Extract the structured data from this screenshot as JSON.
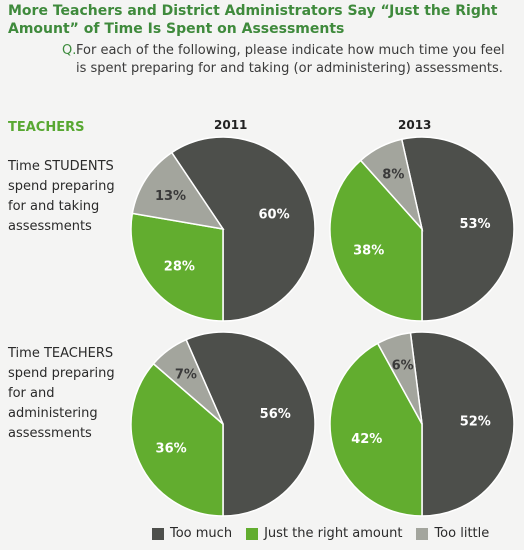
{
  "title": "More Teachers and District Administrators Say “Just the Right Amount” of Time Is Spent on Assessments",
  "question": {
    "marker": "Q.",
    "text": "For each of the following, please indicate how much time you feel is spent preparing for and taking (or administering) assessments."
  },
  "group_label": "TEACHERS",
  "years": [
    "2011",
    "2013"
  ],
  "row_labels": [
    "Time STUDENTS spend preparing for and taking assessments",
    "Time TEACHERS spend preparing for and administering assessments"
  ],
  "colors": {
    "too_much": "#4d4f4b",
    "just_right": "#62ad2f",
    "too_little": "#a3a59d",
    "title": "#3f8a3c",
    "group_label": "#58a832"
  },
  "legend": [
    "Too much",
    "Just the right amount",
    "Too little"
  ],
  "chart_data": [
    {
      "type": "pie",
      "row": "Time STUDENTS spend preparing for and taking assessments",
      "year": "2011",
      "slices": [
        {
          "label": "Too much",
          "value": 60,
          "text": "60%"
        },
        {
          "label": "Just the right amount",
          "value": 28,
          "text": "28%"
        },
        {
          "label": "Too little",
          "value": 13,
          "text": "13%"
        }
      ]
    },
    {
      "type": "pie",
      "row": "Time STUDENTS spend preparing for and taking assessments",
      "year": "2013",
      "slices": [
        {
          "label": "Too much",
          "value": 53,
          "text": "53%"
        },
        {
          "label": "Just the right amount",
          "value": 38,
          "text": "38%"
        },
        {
          "label": "Too little",
          "value": 8,
          "text": "8%"
        }
      ]
    },
    {
      "type": "pie",
      "row": "Time TEACHERS spend preparing for and administering assessments",
      "year": "2011",
      "slices": [
        {
          "label": "Too much",
          "value": 56,
          "text": "56%"
        },
        {
          "label": "Just the right amount",
          "value": 36,
          "text": "36%"
        },
        {
          "label": "Too little",
          "value": 7,
          "text": "7%"
        }
      ]
    },
    {
      "type": "pie",
      "row": "Time TEACHERS spend preparing for and administering assessments",
      "year": "2013",
      "slices": [
        {
          "label": "Too much",
          "value": 52,
          "text": "52%"
        },
        {
          "label": "Just the right amount",
          "value": 42,
          "text": "42%"
        },
        {
          "label": "Too little",
          "value": 6,
          "text": "6%"
        }
      ]
    }
  ]
}
